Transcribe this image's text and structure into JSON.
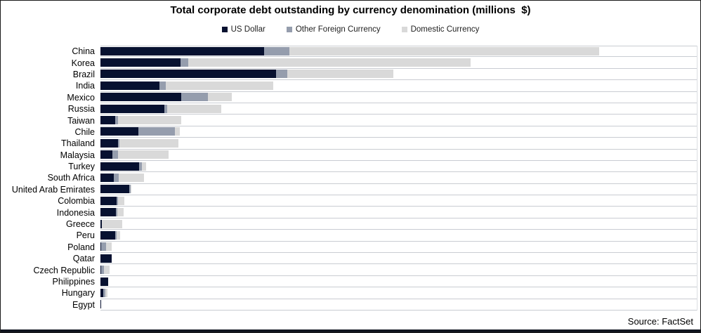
{
  "title": "Total corporate debt outstanding by currency denomination (millions  $)",
  "source": "Source: FactSet",
  "colors": {
    "us_dollar": "#071130",
    "other_foreign": "#959dad",
    "domestic": "#d9d9d9",
    "gridline": "#c9ccd2",
    "bottom_bar": "#10141f"
  },
  "legend": [
    {
      "label": "US Dollar",
      "color": "#071130"
    },
    {
      "label": "Other Foreign Currency",
      "color": "#959dad"
    },
    {
      "label": "Domestic Currency",
      "color": "#d9d9d9"
    }
  ],
  "chart_data": {
    "type": "bar",
    "orientation": "horizontal",
    "stacked": true,
    "title": "Total corporate debt outstanding by currency denomination (millions  $)",
    "xlabel": "",
    "ylabel": "",
    "units": "relative bar length (x-axis unlabeled in source image; 849 units = full plot width)",
    "xlim": [
      0,
      849
    ],
    "grid": "horizontal row separators",
    "legend_position": "top-center",
    "categories": [
      "China",
      "Korea",
      "Brazil",
      "India",
      "Mexico",
      "Russia",
      "Taiwan",
      "Chile",
      "Thailand",
      "Malaysia",
      "Turkey",
      "South Africa",
      "United Arab Emirates",
      "Colombia",
      "Indonesia",
      "Greece",
      "Peru",
      "Poland",
      "Qatar",
      "Czech Republic",
      "Philippines",
      "Hungary",
      "Egypt"
    ],
    "series": [
      {
        "name": "US Dollar",
        "color": "#071130",
        "values": [
          233,
          114,
          250,
          84,
          115,
          91,
          21,
          54,
          25,
          17,
          55,
          19,
          41,
          23,
          22,
          2,
          21,
          1,
          16,
          1,
          11,
          4,
          1
        ]
      },
      {
        "name": "Other Foreign Currency",
        "color": "#959dad",
        "values": [
          36,
          11,
          16,
          9,
          38,
          4,
          4,
          52,
          2,
          8,
          4,
          7,
          2,
          2,
          2,
          0,
          2,
          7,
          0,
          4,
          0,
          3,
          0
        ]
      },
      {
        "name": "Domestic Currency",
        "color": "#d9d9d9",
        "values": [
          441,
          402,
          151,
          153,
          34,
          77,
          90,
          7,
          84,
          72,
          6,
          36,
          1,
          9,
          9,
          29,
          5,
          8,
          0,
          8,
          0,
          3,
          0
        ]
      }
    ]
  }
}
